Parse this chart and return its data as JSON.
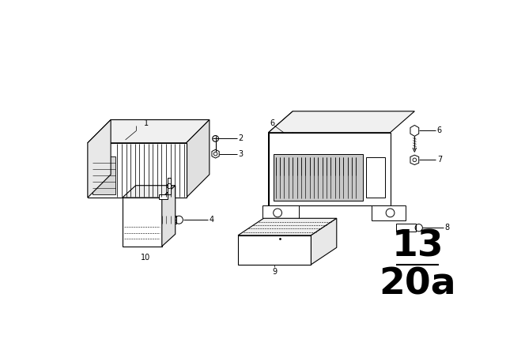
{
  "bg_color": "#ffffff",
  "line_color": "#000000",
  "fig_width": 6.4,
  "fig_height": 4.48,
  "dpi": 100,
  "lw_main": 0.8,
  "lw_thin": 0.5,
  "page_number": "13",
  "page_sub": "20a"
}
